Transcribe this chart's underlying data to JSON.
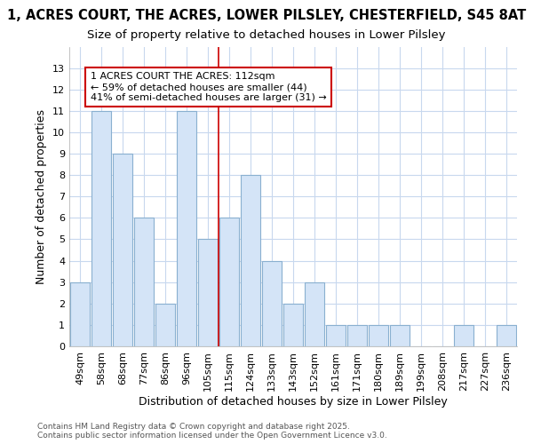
{
  "title_line1": "1, ACRES COURT, THE ACRES, LOWER PILSLEY, CHESTERFIELD, S45 8AT",
  "title_line2": "Size of property relative to detached houses in Lower Pilsley",
  "xlabel": "Distribution of detached houses by size in Lower Pilsley",
  "ylabel": "Number of detached properties",
  "categories": [
    "49sqm",
    "58sqm",
    "68sqm",
    "77sqm",
    "86sqm",
    "96sqm",
    "105sqm",
    "115sqm",
    "124sqm",
    "133sqm",
    "143sqm",
    "152sqm",
    "161sqm",
    "171sqm",
    "180sqm",
    "189sqm",
    "199sqm",
    "208sqm",
    "217sqm",
    "227sqm",
    "236sqm"
  ],
  "values": [
    3,
    11,
    9,
    6,
    2,
    11,
    5,
    6,
    8,
    4,
    2,
    3,
    1,
    1,
    1,
    1,
    0,
    0,
    1,
    0,
    1
  ],
  "bar_color": "#d4e4f7",
  "bar_edge_color": "#8ab0d0",
  "reference_line_index": 6.5,
  "reference_line_color": "#cc0000",
  "annotation_text": "1 ACRES COURT THE ACRES: 112sqm\n← 59% of detached houses are smaller (44)\n41% of semi-detached houses are larger (31) →",
  "annotation_box_facecolor": "#ffffff",
  "annotation_box_edgecolor": "#cc0000",
  "ylim": [
    0,
    14
  ],
  "yticks": [
    0,
    1,
    2,
    3,
    4,
    5,
    6,
    7,
    8,
    9,
    10,
    11,
    12,
    13
  ],
  "footer_text": "Contains HM Land Registry data © Crown copyright and database right 2025.\nContains public sector information licensed under the Open Government Licence v3.0.",
  "background_color": "#ffffff",
  "plot_bg_color": "#ffffff",
  "grid_color": "#c8d8ee",
  "title_fontsize": 10.5,
  "subtitle_fontsize": 9.5,
  "axis_label_fontsize": 9,
  "tick_fontsize": 8,
  "annotation_fontsize": 8,
  "footer_fontsize": 6.5
}
